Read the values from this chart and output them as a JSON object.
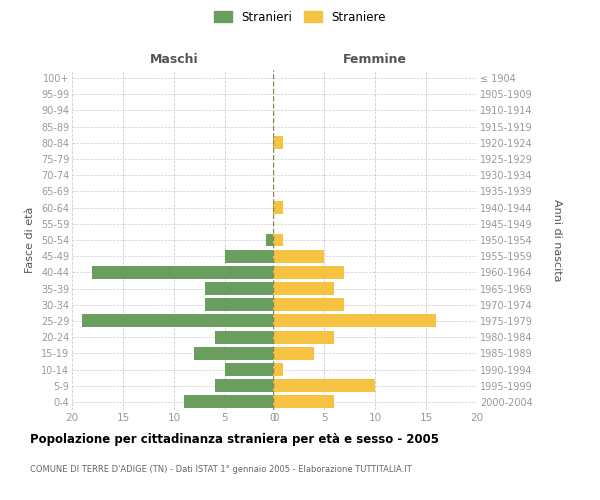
{
  "age_groups": [
    "0-4",
    "5-9",
    "10-14",
    "15-19",
    "20-24",
    "25-29",
    "30-34",
    "35-39",
    "40-44",
    "45-49",
    "50-54",
    "55-59",
    "60-64",
    "65-69",
    "70-74",
    "75-79",
    "80-84",
    "85-89",
    "90-94",
    "95-99",
    "100+"
  ],
  "birth_years": [
    "2000-2004",
    "1995-1999",
    "1990-1994",
    "1985-1989",
    "1980-1984",
    "1975-1979",
    "1970-1974",
    "1965-1969",
    "1960-1964",
    "1955-1959",
    "1950-1954",
    "1945-1949",
    "1940-1944",
    "1935-1939",
    "1930-1934",
    "1925-1929",
    "1920-1924",
    "1915-1919",
    "1910-1914",
    "1905-1909",
    "≤ 1904"
  ],
  "males": [
    9,
    6,
    5,
    8,
    6,
    19,
    7,
    7,
    18,
    5,
    1,
    0,
    0,
    0,
    0,
    0,
    0,
    0,
    0,
    0,
    0
  ],
  "females": [
    6,
    10,
    1,
    4,
    6,
    16,
    7,
    6,
    7,
    5,
    1,
    0,
    1,
    0,
    0,
    0,
    1,
    0,
    0,
    0,
    0
  ],
  "male_color": "#6a9e5f",
  "female_color": "#f5c242",
  "xlim": 20,
  "title": "Popolazione per cittadinanza straniera per età e sesso - 2005",
  "subtitle": "COMUNE DI TERRE D'ADIGE (TN) - Dati ISTAT 1° gennaio 2005 - Elaborazione TUTTITALIA.IT",
  "ylabel_left": "Fasce di età",
  "ylabel_right": "Anni di nascita",
  "xlabel_left": "Maschi",
  "xlabel_right": "Femmine",
  "legend_male": "Stranieri",
  "legend_female": "Straniere",
  "grid_color": "#cccccc",
  "center_line_color": "#888855"
}
